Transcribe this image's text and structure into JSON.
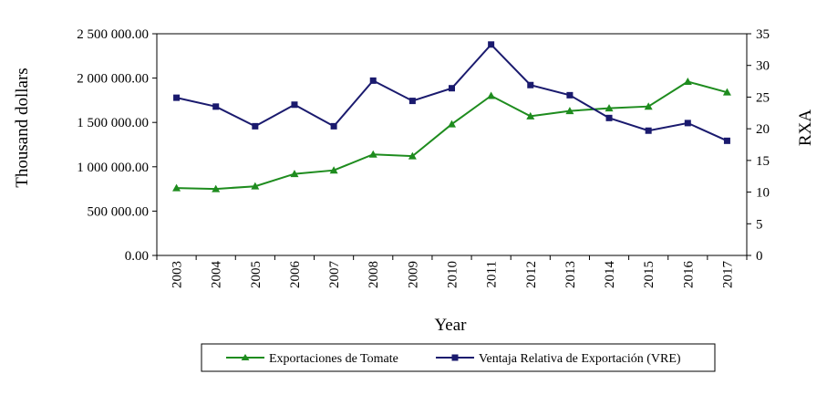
{
  "chart_data": {
    "type": "line",
    "title": "",
    "xlabel": "Year",
    "ylabel": "Thousand dollars",
    "y2label": "RXA",
    "categories": [
      "2003",
      "2004",
      "2005",
      "2006",
      "2007",
      "2008",
      "2009",
      "2010",
      "2011",
      "2012",
      "2013",
      "2014",
      "2015",
      "2016",
      "2017"
    ],
    "ylim": [
      0,
      2500000
    ],
    "y2lim": [
      0,
      35
    ],
    "yticks": [
      "0.00",
      "500 000.00",
      "1 000 000.00",
      "1 500 000.00",
      "2 000 000.00",
      "2 500 000.00"
    ],
    "y2ticks": [
      "0",
      "5",
      "10",
      "15",
      "20",
      "25",
      "30",
      "35"
    ],
    "series": [
      {
        "name": "Exportaciones de Tomate",
        "axis": "left",
        "color": "#1e8c1e",
        "marker": "triangle",
        "values": [
          760000,
          750000,
          780000,
          920000,
          960000,
          1140000,
          1120000,
          1480000,
          1800000,
          1570000,
          1630000,
          1660000,
          1680000,
          1960000,
          1840000
        ]
      },
      {
        "name": "Ventaja Relativa de Exportación (VRE)",
        "axis": "right",
        "color": "#1a1a6e",
        "marker": "square",
        "values": [
          24.9,
          23.5,
          20.4,
          23.8,
          20.4,
          27.6,
          24.4,
          26.4,
          33.3,
          26.9,
          25.3,
          21.7,
          19.7,
          20.9,
          18.1
        ]
      }
    ],
    "legend_position": "bottom"
  }
}
